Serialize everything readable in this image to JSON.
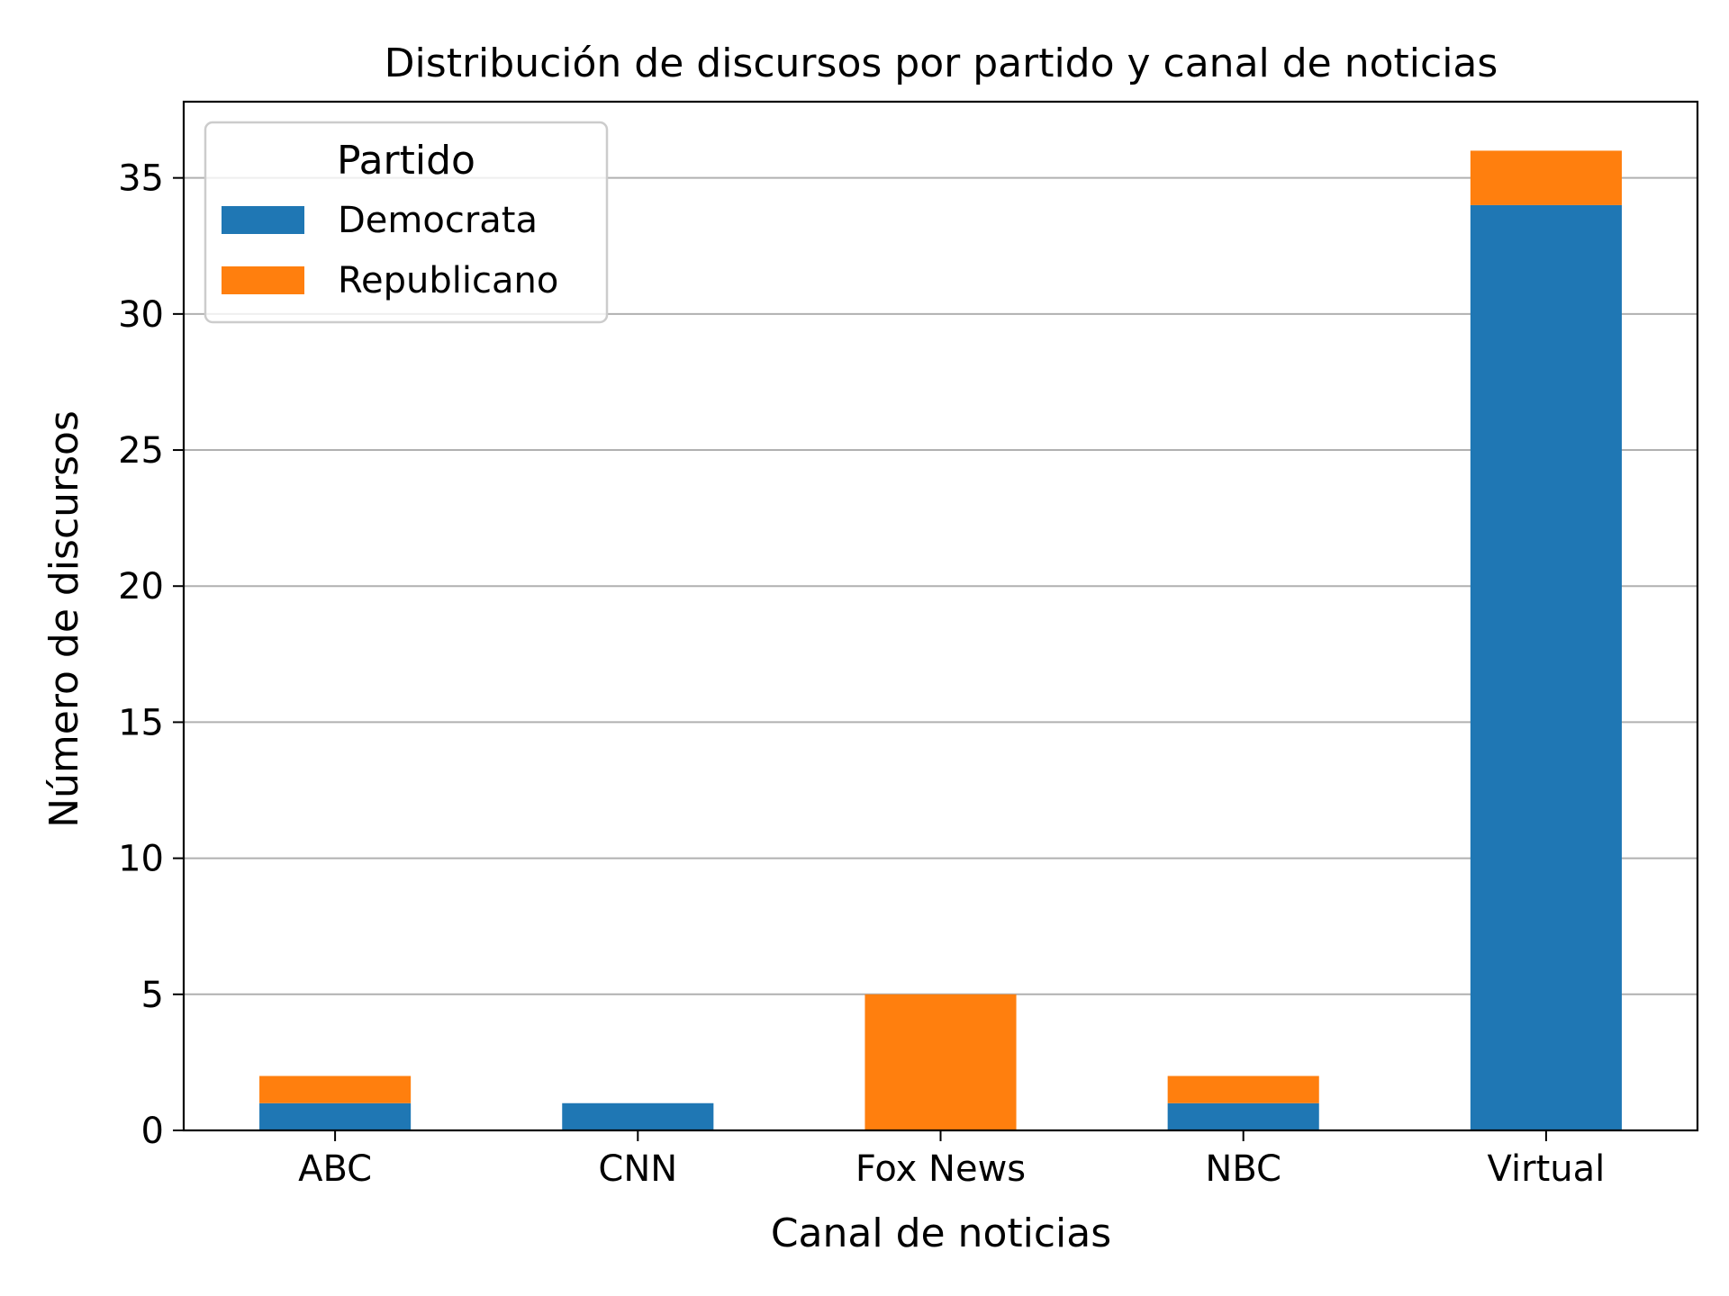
{
  "chart_data": {
    "type": "bar",
    "stacked": true,
    "title": "Distribución de discursos por partido y canal de noticias",
    "xlabel": "Canal de noticias",
    "ylabel": "Número de discursos",
    "categories": [
      "ABC",
      "CNN",
      "Fox News",
      "NBC",
      "Virtual"
    ],
    "series": [
      {
        "name": "Democrata",
        "values": [
          1,
          1,
          0,
          1,
          34
        ],
        "color": "#1f77b4"
      },
      {
        "name": "Republicano",
        "values": [
          1,
          0,
          5,
          1,
          2
        ],
        "color": "#ff7f0e"
      }
    ],
    "ylim": [
      0,
      37.8
    ],
    "yticks": [
      0,
      5,
      10,
      15,
      20,
      25,
      30,
      35
    ],
    "grid": "y",
    "legend": {
      "title": "Partido",
      "placement": "top-left"
    }
  }
}
